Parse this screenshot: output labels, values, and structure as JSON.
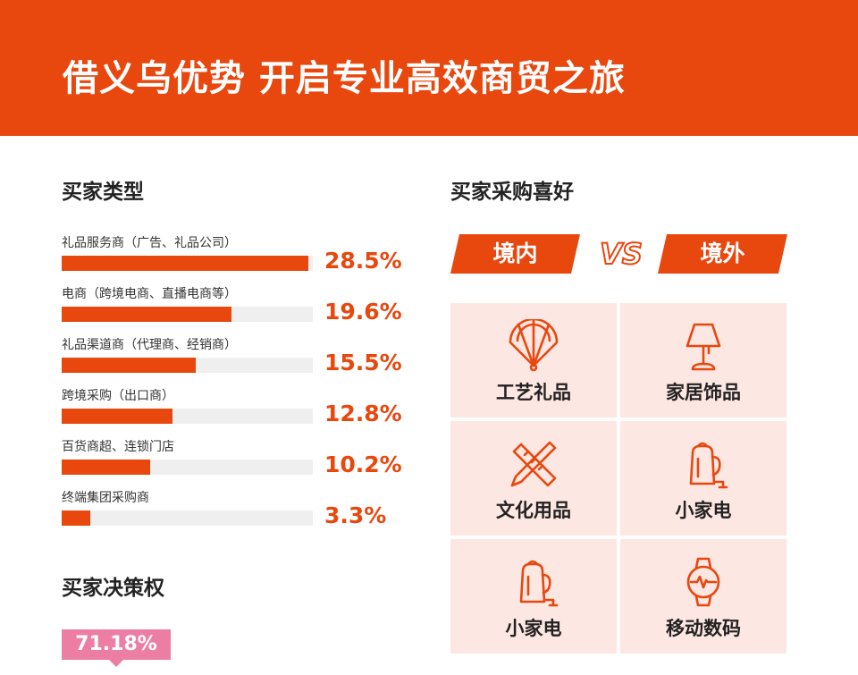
{
  "header": {
    "title": "借义乌优势 开启专业高效商贸之旅"
  },
  "buyer_types": {
    "title": "买家类型",
    "items": [
      {
        "label": "礼品服务商（广告、礼品公司）",
        "value_text": "28.5%"
      },
      {
        "label": "电商（跨境电商、直播电商等）",
        "value_text": "19.6%"
      },
      {
        "label": "礼品渠道商（代理商、经销商）",
        "value_text": "15.5%"
      },
      {
        "label": "跨境采购（出口商）",
        "value_text": "12.8%"
      },
      {
        "label": "百货商超、连锁门店",
        "value_text": "10.2%"
      },
      {
        "label": "终端集团采购商",
        "value_text": "3.3%"
      }
    ]
  },
  "decision": {
    "title": "买家决策权",
    "value": "71.18%"
  },
  "preference": {
    "title": "买家采购喜好",
    "domestic": "境内",
    "vs": "VS",
    "overseas": "境外",
    "items": [
      {
        "label": "工艺礼品",
        "icon": "fan-icon"
      },
      {
        "label": "家居饰品",
        "icon": "lamp-icon"
      },
      {
        "label": "文化用品",
        "icon": "ruler-pencil-icon"
      },
      {
        "label": "小家电",
        "icon": "kettle-icon"
      },
      {
        "label": "小家电",
        "icon": "kettle-icon"
      },
      {
        "label": "移动数码",
        "icon": "smartwatch-icon"
      }
    ]
  },
  "chart_data": {
    "type": "bar",
    "categories": [
      "礼品服务商（广告、礼品公司）",
      "电商（跨境电商、直播电商等）",
      "礼品渠道商（代理商、经销商）",
      "跨境采购（出口商）",
      "百货商超、连锁门店",
      "终端集团采购商"
    ],
    "values": [
      28.5,
      19.6,
      15.5,
      12.8,
      10.2,
      3.3
    ],
    "title": "买家类型",
    "xlabel": "",
    "ylabel": "",
    "xlim": [
      0,
      29
    ]
  },
  "colors": {
    "accent": "#e8470e",
    "cell_bg": "#fde7e2",
    "badge": "#ec7ea4"
  }
}
